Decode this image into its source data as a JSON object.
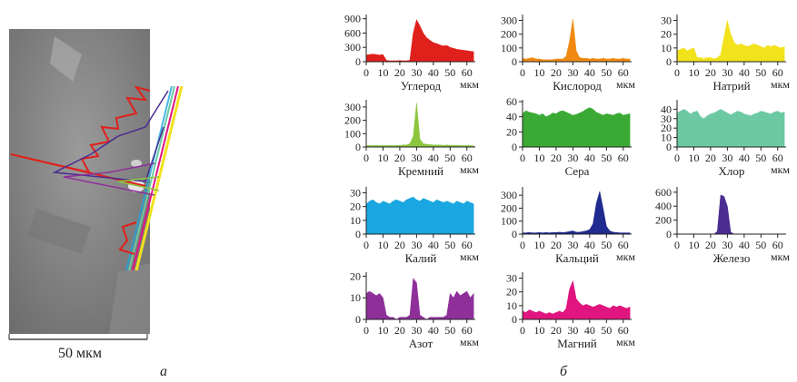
{
  "image": {
    "scale_label": "50 мкм",
    "panel_label": "а"
  },
  "charts_panel_label": "б",
  "chart_data": [
    {
      "type": "area",
      "title": "Углерод",
      "x_label": "мкм",
      "color": "#e0201b",
      "xlim": [
        0,
        65
      ],
      "xticks": [
        0,
        10,
        20,
        30,
        40,
        50,
        60
      ],
      "ylim": [
        0,
        950
      ],
      "yticks": [
        0,
        300,
        600,
        900
      ],
      "x": [
        0,
        2,
        4,
        6,
        8,
        10,
        12,
        14,
        16,
        18,
        20,
        22,
        24,
        26,
        28,
        30,
        32,
        34,
        36,
        38,
        40,
        42,
        44,
        46,
        48,
        50,
        52,
        54,
        56,
        58,
        60,
        62,
        64
      ],
      "values": [
        140,
        150,
        160,
        150,
        140,
        150,
        30,
        20,
        20,
        20,
        25,
        20,
        20,
        30,
        600,
        880,
        750,
        600,
        500,
        450,
        400,
        380,
        350,
        330,
        340,
        300,
        280,
        260,
        250,
        240,
        230,
        220,
        210
      ]
    },
    {
      "type": "area",
      "title": "Кислород",
      "x_label": "мкм",
      "color": "#f08a12",
      "xlim": [
        0,
        65
      ],
      "xticks": [
        0,
        10,
        20,
        30,
        40,
        50,
        60
      ],
      "ylim": [
        0,
        330
      ],
      "yticks": [
        0,
        100,
        200,
        300
      ],
      "x": [
        0,
        2,
        4,
        6,
        8,
        10,
        12,
        14,
        16,
        18,
        20,
        22,
        24,
        26,
        28,
        30,
        32,
        34,
        36,
        38,
        40,
        42,
        44,
        46,
        48,
        50,
        52,
        54,
        56,
        58,
        60,
        62,
        64
      ],
      "values": [
        25,
        20,
        25,
        30,
        20,
        20,
        15,
        15,
        15,
        15,
        20,
        20,
        20,
        40,
        150,
        310,
        80,
        30,
        25,
        25,
        20,
        25,
        20,
        20,
        25,
        20,
        20,
        25,
        20,
        20,
        25,
        20,
        20
      ]
    },
    {
      "type": "area",
      "title": "Натрий",
      "x_label": "мкм",
      "color": "#f2e21c",
      "xlim": [
        0,
        65
      ],
      "xticks": [
        0,
        10,
        20,
        30,
        40,
        50,
        60
      ],
      "ylim": [
        0,
        33
      ],
      "yticks": [
        0,
        10,
        20,
        30
      ],
      "x": [
        0,
        2,
        4,
        6,
        8,
        10,
        12,
        14,
        16,
        18,
        20,
        22,
        24,
        26,
        28,
        30,
        32,
        34,
        36,
        38,
        40,
        42,
        44,
        46,
        48,
        50,
        52,
        54,
        56,
        58,
        60,
        62,
        64
      ],
      "values": [
        8,
        9,
        10,
        8,
        9,
        10,
        3,
        3,
        2,
        3,
        3,
        2,
        3,
        5,
        18,
        30,
        20,
        14,
        12,
        13,
        12,
        11,
        12,
        13,
        12,
        11,
        10,
        12,
        11,
        12,
        11,
        10,
        11
      ]
    },
    {
      "type": "area",
      "title": "Кремний",
      "x_label": "мкм",
      "color": "#8cc63f",
      "xlim": [
        0,
        65
      ],
      "xticks": [
        0,
        10,
        20,
        30,
        40,
        50,
        60
      ],
      "ylim": [
        0,
        340
      ],
      "yticks": [
        0,
        100,
        200,
        300
      ],
      "x": [
        0,
        2,
        4,
        6,
        8,
        10,
        12,
        14,
        16,
        18,
        20,
        22,
        24,
        26,
        28,
        30,
        32,
        34,
        36,
        38,
        40,
        42,
        44,
        46,
        48,
        50,
        52,
        54,
        56,
        58,
        60,
        62,
        64
      ],
      "values": [
        10,
        12,
        10,
        12,
        10,
        12,
        10,
        12,
        10,
        12,
        12,
        15,
        15,
        25,
        80,
        330,
        60,
        25,
        20,
        18,
        15,
        15,
        15,
        12,
        15,
        12,
        12,
        12,
        12,
        10,
        12,
        10,
        10
      ]
    },
    {
      "type": "area",
      "title": "Сера",
      "x_label": "",
      "color": "#3aaa35",
      "xlim": [
        0,
        65
      ],
      "xticks": [
        0,
        10,
        20,
        30,
        40,
        50,
        60
      ],
      "ylim": [
        0,
        60
      ],
      "yticks": [
        0,
        20,
        40,
        60
      ],
      "x": [
        0,
        2,
        4,
        6,
        8,
        10,
        12,
        14,
        16,
        18,
        20,
        22,
        24,
        26,
        28,
        30,
        32,
        34,
        36,
        38,
        40,
        42,
        44,
        46,
        48,
        50,
        52,
        54,
        56,
        58,
        60,
        62,
        64
      ],
      "values": [
        44,
        48,
        46,
        45,
        44,
        42,
        44,
        40,
        42,
        45,
        44,
        47,
        48,
        46,
        44,
        42,
        43,
        45,
        47,
        50,
        52,
        50,
        46,
        44,
        42,
        44,
        43,
        42,
        44,
        45,
        42,
        43,
        44
      ]
    },
    {
      "type": "area",
      "title": "Хлор",
      "x_label": "мкм",
      "color": "#6cc9a4",
      "xlim": [
        0,
        65
      ],
      "xticks": [
        0,
        10,
        20,
        30,
        40,
        50,
        60
      ],
      "ylim": [
        0,
        48
      ],
      "yticks": [
        0,
        10,
        20,
        30,
        40
      ],
      "x": [
        0,
        2,
        4,
        6,
        8,
        10,
        12,
        14,
        16,
        18,
        20,
        22,
        24,
        26,
        28,
        30,
        32,
        34,
        36,
        38,
        40,
        42,
        44,
        46,
        48,
        50,
        52,
        54,
        56,
        58,
        60,
        62,
        64
      ],
      "values": [
        36,
        38,
        40,
        38,
        35,
        37,
        38,
        32,
        30,
        33,
        35,
        36,
        38,
        40,
        38,
        36,
        34,
        36,
        38,
        37,
        35,
        34,
        33,
        35,
        36,
        38,
        37,
        36,
        35,
        37,
        38,
        36,
        37
      ]
    },
    {
      "type": "area",
      "title": "Калий",
      "x_label": "мкм",
      "color": "#1aa6e0",
      "xlim": [
        0,
        65
      ],
      "xticks": [
        0,
        10,
        20,
        30,
        40,
        50,
        60
      ],
      "ylim": [
        0,
        33
      ],
      "yticks": [
        0,
        10,
        20,
        30
      ],
      "x": [
        0,
        2,
        4,
        6,
        8,
        10,
        12,
        14,
        16,
        18,
        20,
        22,
        24,
        26,
        28,
        30,
        32,
        34,
        36,
        38,
        40,
        42,
        44,
        46,
        48,
        50,
        52,
        54,
        56,
        58,
        60,
        62,
        64
      ],
      "values": [
        22,
        24,
        25,
        23,
        22,
        24,
        23,
        22,
        24,
        25,
        24,
        23,
        25,
        26,
        27,
        25,
        24,
        26,
        25,
        24,
        23,
        25,
        24,
        23,
        24,
        23,
        22,
        24,
        23,
        22,
        24,
        23,
        22
      ]
    },
    {
      "type": "area",
      "title": "Кальций",
      "x_label": "мкм",
      "color": "#1f2b8f",
      "xlim": [
        0,
        65
      ],
      "xticks": [
        0,
        10,
        20,
        30,
        40,
        50,
        60
      ],
      "ylim": [
        0,
        350
      ],
      "yticks": [
        0,
        100,
        200,
        300
      ],
      "x": [
        0,
        2,
        4,
        6,
        8,
        10,
        12,
        14,
        16,
        18,
        20,
        22,
        24,
        26,
        28,
        30,
        32,
        34,
        36,
        38,
        40,
        42,
        44,
        46,
        48,
        50,
        52,
        54,
        56,
        58,
        60,
        62,
        64
      ],
      "values": [
        10,
        10,
        12,
        10,
        10,
        12,
        10,
        12,
        10,
        12,
        12,
        15,
        12,
        15,
        20,
        25,
        15,
        15,
        20,
        25,
        35,
        80,
        240,
        330,
        200,
        60,
        25,
        15,
        12,
        10,
        10,
        10,
        10
      ]
    },
    {
      "type": "area",
      "title": "Железо",
      "x_label": "мкм",
      "color": "#4b2c91",
      "xlim": [
        0,
        65
      ],
      "xticks": [
        0,
        10,
        20,
        30,
        40,
        50,
        60
      ],
      "ylim": [
        0,
        650
      ],
      "yticks": [
        0,
        200,
        400,
        600
      ],
      "x": [
        0,
        2,
        4,
        6,
        8,
        10,
        12,
        14,
        16,
        18,
        20,
        22,
        24,
        26,
        28,
        30,
        32,
        34,
        36,
        38,
        40,
        42,
        44,
        46,
        48,
        50,
        52,
        54,
        56,
        58,
        60,
        62,
        64
      ],
      "values": [
        0,
        0,
        0,
        0,
        0,
        0,
        0,
        0,
        0,
        0,
        0,
        0,
        40,
        560,
        540,
        400,
        30,
        0,
        0,
        0,
        0,
        0,
        0,
        0,
        0,
        0,
        0,
        0,
        0,
        0,
        0,
        0,
        0
      ]
    },
    {
      "type": "area",
      "title": "Азот",
      "x_label": "мкм",
      "color": "#8e2f9a",
      "xlim": [
        0,
        65
      ],
      "xticks": [
        0,
        10,
        20,
        30,
        40,
        50,
        60
      ],
      "ylim": [
        0,
        21
      ],
      "yticks": [
        0,
        10,
        20
      ],
      "x": [
        0,
        2,
        4,
        6,
        8,
        10,
        12,
        14,
        16,
        18,
        20,
        22,
        24,
        26,
        28,
        30,
        32,
        34,
        36,
        38,
        40,
        42,
        44,
        46,
        48,
        50,
        52,
        54,
        56,
        58,
        60,
        62,
        64
      ],
      "values": [
        12,
        13,
        12,
        11,
        12,
        10,
        2,
        1,
        1,
        0,
        1,
        1,
        1,
        2,
        19,
        17,
        2,
        1,
        0,
        1,
        1,
        1,
        1,
        1,
        2,
        12,
        10,
        13,
        11,
        12,
        13,
        10,
        12
      ]
    },
    {
      "type": "area",
      "title": "Магний",
      "x_label": "мкм",
      "color": "#e0157f",
      "xlim": [
        0,
        65
      ],
      "xticks": [
        0,
        10,
        20,
        30,
        40,
        50,
        60
      ],
      "ylim": [
        0,
        33
      ],
      "yticks": [
        0,
        10,
        20,
        30
      ],
      "x": [
        0,
        2,
        4,
        6,
        8,
        10,
        12,
        14,
        16,
        18,
        20,
        22,
        24,
        26,
        28,
        30,
        32,
        34,
        36,
        38,
        40,
        42,
        44,
        46,
        48,
        50,
        52,
        54,
        56,
        58,
        60,
        62,
        64
      ],
      "values": [
        6,
        5,
        7,
        6,
        5,
        6,
        5,
        4,
        5,
        4,
        5,
        6,
        5,
        8,
        22,
        28,
        15,
        12,
        10,
        11,
        10,
        9,
        10,
        11,
        10,
        9,
        8,
        10,
        9,
        10,
        9,
        8,
        9
      ]
    }
  ]
}
